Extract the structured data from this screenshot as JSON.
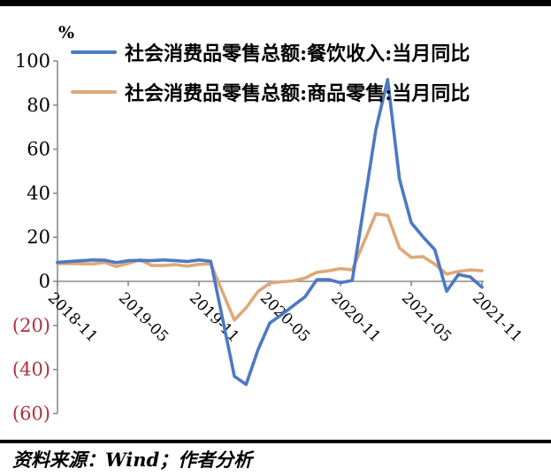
{
  "unit_label": "%",
  "source_note": "资料来源：Wind；作者分析",
  "colors": {
    "catering_line": "#4C79C4",
    "goods_line": "#DEA878",
    "axis": "#8A8A8A",
    "positive_tick_label": "#000000",
    "negative_tick_label": "#B03040",
    "rule": "#000000"
  },
  "chart_data": {
    "type": "line",
    "title": "",
    "ylabel": "%",
    "ylim": [
      -60,
      100
    ],
    "ytick_step": 20,
    "negative_label_style": "parentheses-red",
    "grid": false,
    "legend_position": "top-left",
    "x": [
      "2018-11",
      "2018-12",
      "2019-01",
      "2019-02",
      "2019-03",
      "2019-04",
      "2019-05",
      "2019-06",
      "2019-07",
      "2019-08",
      "2019-09",
      "2019-10",
      "2019-11",
      "2019-12",
      "2020-01",
      "2020-02",
      "2020-03",
      "2020-04",
      "2020-05",
      "2020-06",
      "2020-07",
      "2020-08",
      "2020-09",
      "2020-10",
      "2020-11",
      "2020-12",
      "2021-01",
      "2021-02",
      "2021-03",
      "2021-04",
      "2021-05",
      "2021-06",
      "2021-07",
      "2021-08",
      "2021-09",
      "2021-10",
      "2021-11"
    ],
    "xtick_labels": [
      "2018-11",
      "2019-05",
      "2019-11",
      "2020-05",
      "2020-11",
      "2021-05",
      "2021-11"
    ],
    "xtick_every": 6,
    "series": [
      {
        "name": "社会消费品零售总额:餐饮收入:当月同比",
        "color": "#4C79C4",
        "values": [
          8.6,
          9.0,
          null,
          9.7,
          9.6,
          8.5,
          9.4,
          9.5,
          9.4,
          9.7,
          9.4,
          9.0,
          9.7,
          9.1,
          null,
          -43.1,
          -46.8,
          -31.1,
          -18.9,
          -15.2,
          -11.0,
          -7.0,
          0.8,
          0.8,
          -0.6,
          0.4,
          null,
          68.9,
          91.6,
          46.4,
          26.6,
          20.2,
          14.3,
          -4.5,
          3.1,
          2.0,
          -2.7
        ]
      },
      {
        "name": "社会消费品零售总额:商品零售:当月同比",
        "color": "#DEA878",
        "values": [
          8.0,
          8.1,
          null,
          7.9,
          8.6,
          6.7,
          8.2,
          9.8,
          7.2,
          7.2,
          7.6,
          6.9,
          7.7,
          7.9,
          null,
          -17.6,
          -12.0,
          -4.6,
          -0.8,
          -0.2,
          0.2,
          1.5,
          4.1,
          4.8,
          5.8,
          5.2,
          null,
          30.7,
          29.9,
          15.1,
          10.9,
          11.2,
          7.8,
          3.3,
          4.5,
          5.2,
          4.8
        ]
      }
    ]
  }
}
